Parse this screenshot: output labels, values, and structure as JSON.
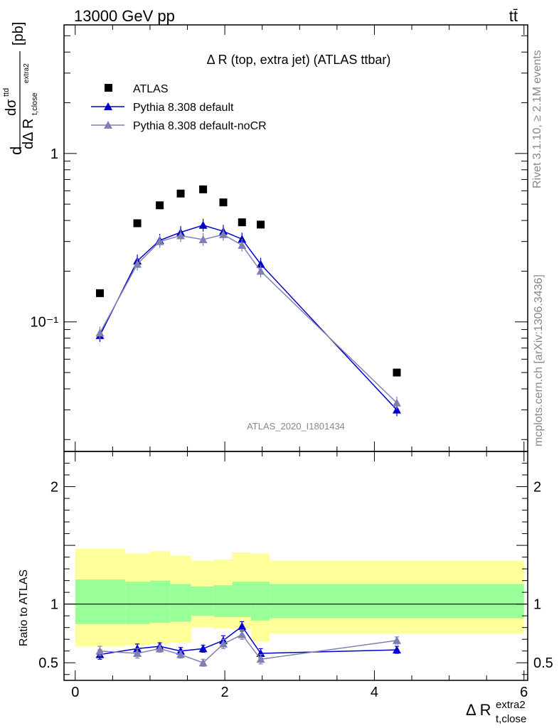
{
  "header": {
    "left": "13000 GeV pp",
    "right": "tt̄"
  },
  "side_labels": {
    "rivet": "Rivet 3.1.10, ≥ 2.1M events",
    "mcplots": "mcplots.cern.ch [arXiv:1306.3436]"
  },
  "chart_data": [
    {
      "type": "scatter",
      "title": "Δ R (top, extra jet) (ATLAS ttbar)",
      "watermark": "ATLAS_2020_I1801434",
      "ylabel": "dσ^ttd / dΔ R_t,close^extra2 [pb]",
      "ylabel_parts": {
        "lead": "d",
        "num": "dσ",
        "num_sup": "ttd",
        "den": "dΔ R",
        "den_sub": "t,close",
        "den_sup": "extra2",
        "unit": "[pb]"
      },
      "y_scale": "log",
      "ylim": [
        0.017,
        5.8
      ],
      "xlim": [
        -0.15,
        6.05
      ],
      "y_ticks": [
        {
          "value": 1,
          "label": "1"
        },
        {
          "value": 0.1,
          "label": "10⁻¹"
        }
      ],
      "legend": {
        "placement": "top-left",
        "entries": [
          "ATLAS",
          "Pythia 8.308 default",
          "Pythia 8.308 default-noCR"
        ]
      },
      "series": [
        {
          "name": "ATLAS",
          "color": "#000000",
          "marker": "square",
          "x": [
            0.33,
            0.83,
            1.13,
            1.41,
            1.71,
            1.98,
            2.23,
            2.48,
            4.3
          ],
          "y": [
            0.148,
            0.385,
            0.492,
            0.578,
            0.612,
            0.512,
            0.39,
            0.378,
            0.05
          ]
        },
        {
          "name": "Pythia 8.308 default",
          "color": "#0000cc",
          "marker": "triangle",
          "x": [
            0.33,
            0.83,
            1.13,
            1.41,
            1.71,
            1.98,
            2.23,
            2.48,
            4.3
          ],
          "y": [
            0.083,
            0.23,
            0.305,
            0.34,
            0.375,
            0.345,
            0.31,
            0.22,
            0.03
          ]
        },
        {
          "name": "Pythia 8.308 default-noCR",
          "color": "#8080b0",
          "marker": "triangle",
          "x": [
            0.33,
            0.83,
            1.13,
            1.41,
            1.71,
            1.98,
            2.23,
            2.48,
            4.3
          ],
          "y": [
            0.086,
            0.22,
            0.3,
            0.325,
            0.308,
            0.33,
            0.285,
            0.2,
            0.033
          ]
        }
      ]
    },
    {
      "type": "scatter",
      "ylabel": "Ratio to ATLAS",
      "xlabel": "Δ R_t,close^extra2",
      "xlabel_parts": {
        "main": "Δ R",
        "sub": "t,close",
        "sup": "extra2"
      },
      "ylim": [
        0.35,
        2.3
      ],
      "xlim": [
        -0.15,
        6.05
      ],
      "x_ticks": [
        0,
        2,
        4,
        6
      ],
      "y_ticks": [
        0.5,
        1,
        2
      ],
      "reference_line": 1,
      "bands": {
        "edges": [
          0.0,
          0.67,
          1.0,
          1.27,
          1.55,
          1.85,
          2.1,
          2.35,
          2.6,
          6.0
        ],
        "yellow_lo": [
          0.64,
          0.65,
          0.66,
          0.67,
          0.8,
          0.79,
          0.79,
          0.68,
          0.75
        ],
        "yellow_hi": [
          1.47,
          1.43,
          1.45,
          1.41,
          1.37,
          1.38,
          1.44,
          1.43,
          1.37
        ],
        "green_lo": [
          0.83,
          0.83,
          0.84,
          0.85,
          0.9,
          0.89,
          0.89,
          0.86,
          0.88
        ],
        "green_hi": [
          1.21,
          1.19,
          1.2,
          1.17,
          1.15,
          1.16,
          1.19,
          1.19,
          1.17
        ],
        "yellow_color": "#ffff99",
        "green_color": "#99ff99"
      },
      "series": [
        {
          "name": "Pythia 8.308 default",
          "color": "#0000cc",
          "x": [
            0.33,
            0.83,
            1.13,
            1.41,
            1.71,
            1.98,
            2.23,
            2.48,
            4.3
          ],
          "y": [
            0.57,
            0.62,
            0.64,
            0.6,
            0.62,
            0.69,
            0.81,
            0.58,
            0.61
          ],
          "err": [
            0.04,
            0.04,
            0.03,
            0.03,
            0.03,
            0.04,
            0.04,
            0.04,
            0.03
          ]
        },
        {
          "name": "Pythia 8.308 default-noCR",
          "color": "#8080b0",
          "x": [
            0.33,
            0.83,
            1.13,
            1.41,
            1.71,
            1.98,
            2.23,
            2.48,
            4.3
          ],
          "y": [
            0.6,
            0.58,
            0.62,
            0.57,
            0.5,
            0.66,
            0.74,
            0.53,
            0.69
          ],
          "err": [
            0.04,
            0.04,
            0.03,
            0.03,
            0.03,
            0.04,
            0.04,
            0.04,
            0.03
          ]
        }
      ]
    }
  ]
}
